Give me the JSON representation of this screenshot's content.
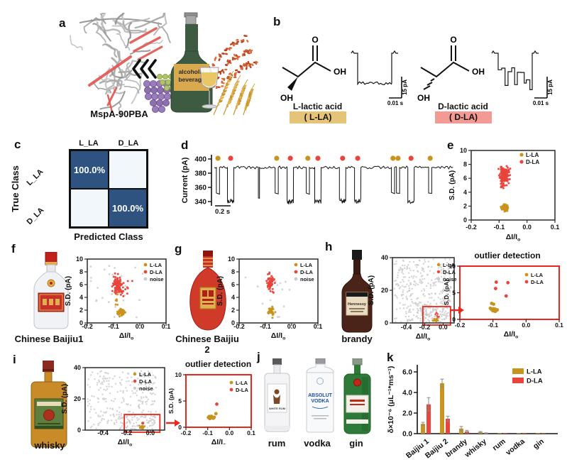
{
  "colors": {
    "series": {
      "L-LA": "#C8941E",
      "D-LA": "#E8453C",
      "noise": "#CBCBCB"
    },
    "matrix_dark": "#2F5380",
    "matrix_light": "#F2F7FB",
    "l_tag_bg": "#E5C377",
    "d_tag_bg": "#F39A94",
    "zoom_red": "#E8281E",
    "bottle_green": "#3D5B40",
    "label_tan": "#D9A94F"
  },
  "panel_a": {
    "letter": "a",
    "protein_caption": "MspA-90PBA",
    "bottle_line1": "alcoholic",
    "bottle_line2": "beverage"
  },
  "panel_b": {
    "letter": "b",
    "atom_o": "O",
    "atom_oh": "OH",
    "molecule_l": {
      "name": "L-lactic acid",
      "tag": "( L-LA)"
    },
    "molecule_d": {
      "name": "D-lactic acid",
      "tag": "( D-LA)"
    },
    "scale_time": "0.01 s",
    "scale_current": "15 pA"
  },
  "panel_c": {
    "letter": "c"
  },
  "panel_d": {
    "letter": "d"
  },
  "panel_e": {
    "letter": "e"
  },
  "panel_f": {
    "letter": "f",
    "caption": "Chinese Baijiu1"
  },
  "panel_g": {
    "letter": "g",
    "caption": "Chinese Baijiu 2"
  },
  "panel_h": {
    "letter": "h",
    "caption": "brandy",
    "bottle_text": "Hennessy"
  },
  "panel_i": {
    "letter": "i",
    "caption": "whisky"
  },
  "panel_j": {
    "letter": "j",
    "captions": [
      "rum",
      "vodka",
      "gin"
    ],
    "rum_text": "WHITE RUM",
    "vodka_text1": "ABSOLUT",
    "vodka_text2": "VODKA"
  },
  "panel_k": {
    "letter": "k"
  },
  "chart_data": [
    {
      "id": "c_matrix",
      "type": "heatmap",
      "row_axis_label": "True Class",
      "col_axis_label": "Predicted Class",
      "rows": [
        "L_LA",
        "D_LA"
      ],
      "cols": [
        "L_LA",
        "D_LA"
      ],
      "values_percent": [
        [
          100.0,
          0
        ],
        [
          0,
          100.0
        ]
      ]
    },
    {
      "id": "d_trace",
      "type": "line",
      "ylabel": "Current (pA)",
      "yticks": [
        400,
        380,
        360,
        340
      ],
      "baseline_pA": 388,
      "scalebar": "0.2 s",
      "events": [
        {
          "pos": 0.015,
          "type": "L-LA",
          "dip": 352
        },
        {
          "pos": 0.068,
          "type": "D-LA",
          "dip": 343
        },
        {
          "pos": 0.186,
          "type": "spike",
          "dip": 345
        },
        {
          "pos": 0.26,
          "type": "L-LA",
          "dip": 352
        },
        {
          "pos": 0.317,
          "type": "D-LA",
          "dip": 342
        },
        {
          "pos": 0.39,
          "type": "L-LA",
          "dip": 352
        },
        {
          "pos": 0.432,
          "type": "D-LA",
          "dip": 342
        },
        {
          "pos": 0.535,
          "type": "D-LA",
          "dip": 343
        },
        {
          "pos": 0.598,
          "type": "D-LA",
          "dip": 343
        },
        {
          "pos": 0.745,
          "type": "L-LA",
          "dip": 353
        },
        {
          "pos": 0.766,
          "type": "L-LA",
          "dip": 352
        },
        {
          "pos": 0.82,
          "type": "D-LA",
          "dip": 342
        },
        {
          "pos": 0.9,
          "type": "L-LA",
          "dip": 352
        }
      ]
    },
    {
      "id": "e_scatter",
      "type": "scatter",
      "xlabel": "ΔI/I",
      "xlabel_sub": "o",
      "ylabel": "S.D. (pA)",
      "xlim": [
        -0.2,
        0.1
      ],
      "ylim": [
        0,
        10
      ],
      "xticks": [
        -0.2,
        -0.1,
        0.0,
        0.1
      ],
      "yticks": [
        0,
        2,
        4,
        6,
        8,
        10
      ],
      "xtickdec": 1,
      "ytickdec": 0,
      "legend": [
        "L-LA",
        "D-LA"
      ],
      "clusters": [
        {
          "series": "D-LA",
          "cx": -0.082,
          "cy": 6.4,
          "sx": 0.0075,
          "sy": 0.55,
          "n": 150
        },
        {
          "series": "D-LA",
          "cx": -0.088,
          "cy": 4.9,
          "sx": 0.006,
          "sy": 0.3,
          "n": 10
        },
        {
          "series": "L-LA",
          "cx": -0.08,
          "cy": 1.72,
          "sx": 0.0055,
          "sy": 0.24,
          "n": 80
        }
      ]
    },
    {
      "id": "f_scatter",
      "type": "scatter",
      "xlabel": "ΔI/I",
      "xlabel_sub": "o",
      "ylabel": "S.D. (pA)",
      "xlim": [
        -0.2,
        0.1
      ],
      "ylim": [
        0,
        10
      ],
      "xticks": [
        -0.2,
        -0.1,
        0.0,
        0.1
      ],
      "yticks": [
        0,
        2,
        4,
        6,
        8,
        10
      ],
      "xtickdec": 1,
      "ytickdec": 0,
      "legend": [
        "L-LA",
        "D-LA",
        "noise"
      ],
      "clusters": [
        {
          "series": "noise",
          "uniform": true,
          "x0": -0.21,
          "x1": 0.03,
          "y0": 0.4,
          "y1": 9.6,
          "n": 26
        },
        {
          "series": "D-LA",
          "cx": -0.085,
          "cy": 5.9,
          "sx": 0.009,
          "sy": 0.7,
          "n": 110
        },
        {
          "series": "D-LA",
          "cx": -0.052,
          "cy": 5.6,
          "sx": 0.012,
          "sy": 0.7,
          "n": 9
        },
        {
          "series": "L-LA",
          "cx": -0.07,
          "cy": 1.65,
          "sx": 0.008,
          "sy": 0.28,
          "n": 60
        },
        {
          "series": "L-LA",
          "cx": -0.088,
          "cy": 3.2,
          "sx": 0.004,
          "sy": 0.7,
          "n": 6
        }
      ]
    },
    {
      "id": "g_scatter",
      "type": "scatter",
      "xlabel": "ΔI/I",
      "xlabel_sub": "o",
      "ylabel": "S.D. (pA)",
      "xlim": [
        -0.2,
        0.1
      ],
      "ylim": [
        0,
        10
      ],
      "xticks": [
        -0.2,
        -0.1,
        0.0,
        0.1
      ],
      "yticks": [
        0,
        2,
        4,
        6,
        8,
        10
      ],
      "xtickdec": 1,
      "ytickdec": 0,
      "legend": [
        "L-LA",
        "D-LA",
        "noise"
      ],
      "clusters": [
        {
          "series": "noise",
          "uniform": true,
          "x0": -0.19,
          "x1": 0.0,
          "y0": 0.6,
          "y1": 7.6,
          "n": 13
        },
        {
          "series": "D-LA",
          "cx": -0.08,
          "cy": 6.3,
          "sx": 0.0065,
          "sy": 0.55,
          "n": 60
        },
        {
          "series": "L-LA",
          "cx": -0.078,
          "cy": 1.8,
          "sx": 0.005,
          "sy": 0.3,
          "n": 45
        }
      ]
    },
    {
      "id": "h_scatter",
      "type": "scatter",
      "xlabel": "ΔI/I",
      "xlabel_sub": "o",
      "ylabel": "S.D. (pA)",
      "xlim": [
        -0.55,
        0.12
      ],
      "ylim": [
        0,
        40
      ],
      "xticks": [
        -0.4,
        -0.2,
        0.0
      ],
      "yticks": [
        0,
        20,
        40
      ],
      "xtickdec": 1,
      "ytickdec": 0,
      "legend": [
        "L-LA",
        "D-LA",
        "noise"
      ],
      "clusters": [
        {
          "series": "noise",
          "uniform": true,
          "x0": -0.53,
          "x1": 0.09,
          "y0": 0.4,
          "y1": 39,
          "n": 330
        },
        {
          "series": "noise",
          "uniform": true,
          "x0": -0.3,
          "x1": 0.05,
          "y0": 0.3,
          "y1": 12,
          "n": 90
        },
        {
          "series": "D-LA",
          "cx": -0.075,
          "cy": 5.5,
          "sx": 0.015,
          "sy": 1.4,
          "n": 6
        },
        {
          "series": "L-LA",
          "cx": -0.085,
          "cy": 1.8,
          "sx": 0.01,
          "sy": 0.55,
          "n": 25
        }
      ],
      "zoombox": {
        "x0": -0.22,
        "x1": 0.08,
        "y0": 0,
        "y1": 10
      }
    },
    {
      "id": "h_inset",
      "type": "scatter",
      "title": "outlier detection",
      "xlabel": "ΔI/I",
      "xlabel_sub": "o",
      "ylabel": "S.D. (pA)",
      "xlim": [
        -0.2,
        0.1
      ],
      "ylim": [
        0,
        10
      ],
      "xticks": [
        -0.2,
        -0.1,
        0.0,
        0.1
      ],
      "yticks": [
        0,
        5,
        10
      ],
      "xtickdec": 1,
      "ytickdec": 0,
      "legend": [
        "L-LA",
        "D-LA"
      ],
      "points": [
        {
          "series": "D-LA",
          "xy": [
            [
              -0.09,
              7.0
            ],
            [
              -0.055,
              6.9
            ],
            [
              -0.092,
              5.8
            ],
            [
              -0.06,
              4.4
            ]
          ]
        },
        {
          "series": "L-LA",
          "xy": [
            [
              -0.104,
              3.0
            ],
            [
              -0.098,
              2.85
            ],
            [
              -0.108,
              2.1
            ],
            [
              -0.1,
              2.0
            ],
            [
              -0.094,
              1.95
            ],
            [
              -0.102,
              1.8
            ],
            [
              -0.096,
              1.7
            ],
            [
              -0.09,
              1.65
            ],
            [
              -0.1,
              1.6
            ],
            [
              -0.093,
              1.5
            ],
            [
              -0.087,
              1.8
            ],
            [
              -0.105,
              1.9
            ]
          ]
        }
      ]
    },
    {
      "id": "i_scatter",
      "type": "scatter",
      "xlabel": "ΔI/I",
      "xlabel_sub": "o",
      "ylabel": "S.D. (pA)",
      "xlim": [
        -0.55,
        0.12
      ],
      "ylim": [
        0,
        40
      ],
      "xticks": [
        -0.4,
        -0.2,
        0.0
      ],
      "yticks": [
        0,
        20,
        40
      ],
      "xtickdec": 1,
      "ytickdec": 0,
      "legend": [
        "L-LA",
        "D-LA",
        "noise"
      ],
      "clusters": [
        {
          "series": "noise",
          "uniform": true,
          "x0": -0.53,
          "x1": 0.06,
          "y0": 0.4,
          "y1": 38,
          "n": 260
        },
        {
          "series": "noise",
          "uniform": true,
          "x0": -0.28,
          "x1": 0.04,
          "y0": 0.3,
          "y1": 10,
          "n": 70
        },
        {
          "series": "L-LA",
          "cx": -0.07,
          "cy": 1.9,
          "sx": 0.009,
          "sy": 0.5,
          "n": 20
        }
      ],
      "points": [
        {
          "series": "D-LA",
          "xy": [
            [
              -0.065,
              4.4
            ]
          ]
        }
      ],
      "zoombox": {
        "x0": -0.22,
        "x1": 0.08,
        "y0": 0,
        "y1": 10
      }
    },
    {
      "id": "i_inset",
      "type": "scatter",
      "title": "outlier detection",
      "xlabel": "ΔI/I",
      "xlabel_sub": "o",
      "ylabel": "S.D. (pA)",
      "xlim": [
        -0.2,
        0.1
      ],
      "ylim": [
        0,
        10
      ],
      "xticks": [
        -0.2,
        -0.1,
        0.0,
        0.1
      ],
      "yticks": [
        0,
        5,
        10
      ],
      "xtickdec": 1,
      "ytickdec": 0,
      "legend": [
        "L-LA",
        "D-LA"
      ],
      "points": [
        {
          "series": "L-LA",
          "xy": [
            [
              -0.062,
              2.6
            ],
            [
              -0.093,
              2.05
            ],
            [
              -0.085,
              1.95
            ],
            [
              -0.097,
              1.85
            ],
            [
              -0.08,
              1.8
            ],
            [
              -0.074,
              1.72
            ],
            [
              -0.09,
              1.65
            ],
            [
              -0.07,
              1.9
            ],
            [
              -0.083,
              2.1
            ]
          ]
        },
        {
          "series": "D-LA",
          "xy": [
            [
              -0.058,
              4.4
            ]
          ]
        }
      ]
    },
    {
      "id": "k_bars",
      "type": "bar",
      "ylabel": "δ×10⁻⁶ (μL⁻¹*ms⁻¹)",
      "yticks": [
        0.0,
        2.0,
        4.0,
        6.0
      ],
      "ylim": [
        0,
        6.8
      ],
      "categories": [
        "Baijiu 1",
        "Baijiu 2",
        "brandy",
        "whisky",
        "rum",
        "vodka",
        "gin"
      ],
      "series": [
        {
          "name": "L-LA",
          "values": [
            0.95,
            4.9,
            0.5,
            0.15,
            0.02,
            0.02,
            0.02
          ],
          "errors": [
            0.15,
            0.4,
            0.2,
            0.06,
            0,
            0,
            0
          ]
        },
        {
          "name": "D-LA",
          "values": [
            2.85,
            1.45,
            0.22,
            0.05,
            0.02,
            0.02,
            0.02
          ],
          "errors": [
            0.65,
            0.25,
            0.1,
            0.03,
            0,
            0,
            0
          ]
        }
      ]
    }
  ]
}
